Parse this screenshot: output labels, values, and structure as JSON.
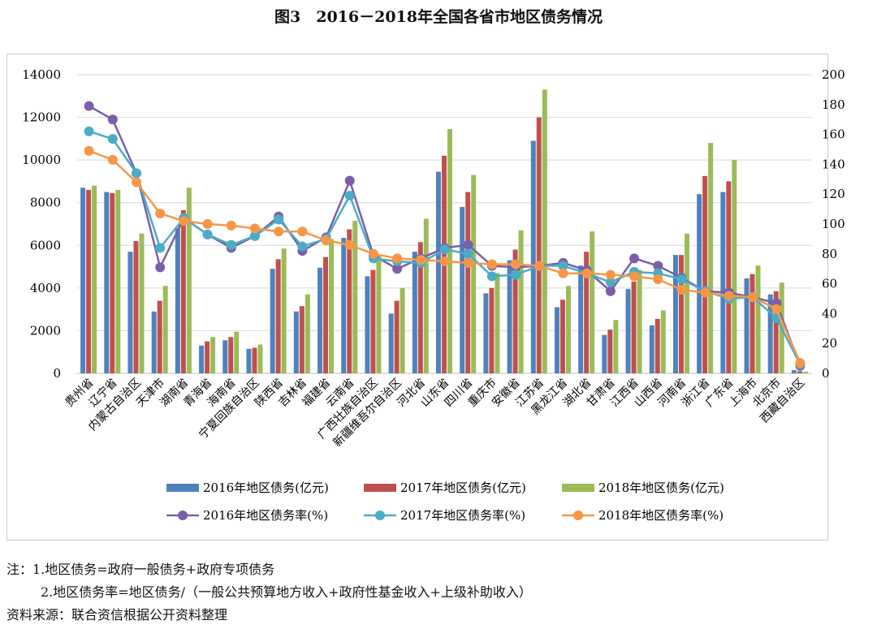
{
  "title": "图3　2016－2018年全国各省市地区债务情况",
  "chart_data": {
    "type": "bar+line",
    "categories": [
      "贵州省",
      "辽宁省",
      "内蒙古自治区",
      "天津市",
      "湖南省",
      "青海省",
      "海南省",
      "宁夏回族自治区",
      "陕西省",
      "吉林省",
      "福建省",
      "云南省",
      "广西壮族自治区",
      "新疆维吾尔自治区",
      "河北省",
      "山东省",
      "四川省",
      "重庆市",
      "安徽省",
      "江苏省",
      "黑龙江省",
      "湖北省",
      "甘肃省",
      "江西省",
      "山西省",
      "河南省",
      "浙江省",
      "广东省",
      "上海市",
      "北京市",
      "西藏自治区"
    ],
    "y_left": {
      "range": [
        0,
        14000
      ],
      "ticks": [
        "0",
        "2000",
        "4000",
        "6000",
        "8000",
        "10000",
        "12000",
        "14000"
      ]
    },
    "y_right": {
      "range": [
        0,
        200
      ],
      "ticks": [
        "0",
        "20",
        "40",
        "60",
        "80",
        "100",
        "120",
        "140",
        "160",
        "180",
        "200"
      ]
    },
    "grid": true,
    "legend_position": "bottom",
    "bar_series": [
      {
        "name": "2016年地区债务(亿元)",
        "color": "#4f81bd",
        "values": [
          8700,
          8500,
          5700,
          2900,
          6800,
          1300,
          1550,
          1150,
          4900,
          2900,
          4950,
          6350,
          4550,
          2800,
          5700,
          9450,
          7800,
          3750,
          5300,
          10900,
          3100,
          5050,
          1800,
          3950,
          2250,
          5550,
          8400,
          8500,
          4450,
          3700,
          150
        ]
      },
      {
        "name": "2017年地区债务(亿元)",
        "color": "#c0504d",
        "values": [
          8600,
          8450,
          6200,
          3400,
          7650,
          1500,
          1700,
          1200,
          5350,
          3150,
          5450,
          6750,
          4850,
          3400,
          6150,
          10200,
          8500,
          4000,
          5800,
          12000,
          3450,
          5700,
          2050,
          4300,
          2550,
          5550,
          9250,
          9000,
          4650,
          3850,
          100
        ]
      },
      {
        "name": "2018年地区债务(亿元)",
        "color": "#9bbb59",
        "values": [
          8800,
          8600,
          6550,
          4100,
          8700,
          1700,
          1950,
          1350,
          5850,
          3700,
          6300,
          7150,
          5500,
          4000,
          7250,
          11450,
          9300,
          4700,
          6700,
          13300,
          4100,
          6650,
          2500,
          4850,
          2950,
          6550,
          10800,
          10000,
          5050,
          4250,
          80
        ]
      }
    ],
    "line_series": [
      {
        "name": "2016年地区债务率(%)",
        "color": "#7a5fa8",
        "values": [
          179,
          170,
          134,
          71,
          104,
          93,
          84,
          92,
          105,
          82,
          91,
          129,
          79,
          70,
          77,
          84,
          86,
          72,
          71,
          72,
          74,
          69,
          55,
          77,
          72,
          64,
          55,
          54,
          51,
          47,
          5
        ]
      },
      {
        "name": "2017年地区债务率(%)",
        "color": "#4bacc6",
        "values": [
          162,
          157,
          134,
          84,
          104,
          93,
          86,
          92,
          103,
          85,
          90,
          119,
          77,
          75,
          74,
          83,
          80,
          65,
          66,
          72,
          72,
          67,
          61,
          68,
          67,
          63,
          55,
          50,
          51,
          37,
          6
        ]
      },
      {
        "name": "2018年地区债务率(%)",
        "color": "#f79646",
        "values": [
          149,
          143,
          128,
          107,
          102,
          100,
          99,
          97,
          95,
          95,
          89,
          86,
          80,
          77,
          76,
          75,
          74,
          73,
          73,
          72,
          67,
          67,
          66,
          65,
          63,
          56,
          54,
          52,
          51,
          43,
          7
        ]
      }
    ]
  },
  "notes": [
    "注：1.地区债务=政府一般债务+政府专项债务",
    "2.地区债务率=地区债务/（一般公共预算地方收入+政府性基金收入+上级补助收入）",
    "资料来源：联合资信根据公开资料整理"
  ]
}
